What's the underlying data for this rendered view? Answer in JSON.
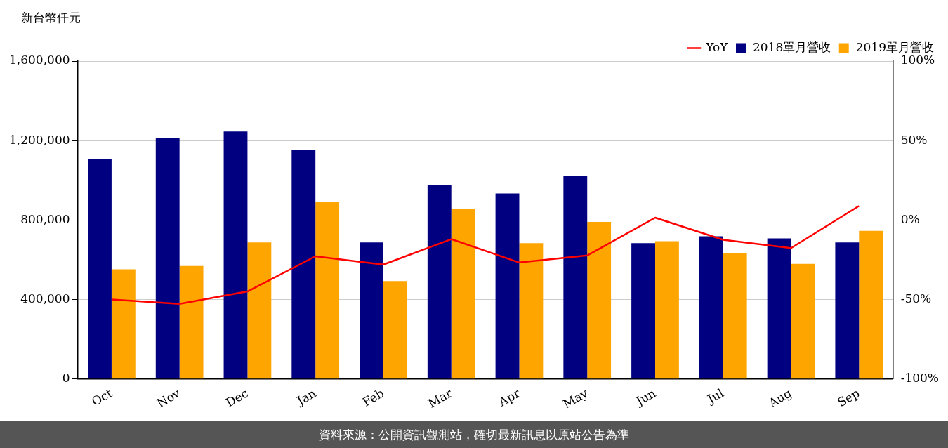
{
  "chart_data": {
    "type": "bar",
    "ylabel": "新台幣仟元",
    "categories": [
      "Oct",
      "Nov",
      "Dec",
      "Jan",
      "Feb",
      "Mar",
      "Apr",
      "May",
      "Jun",
      "Jul",
      "Aug",
      "Sep"
    ],
    "series": [
      {
        "name": "2018單月營收",
        "color": "#000080",
        "values": [
          1107000,
          1211000,
          1246000,
          1152000,
          687000,
          975000,
          934000,
          1024000,
          684000,
          718000,
          708000,
          687000
        ]
      },
      {
        "name": "2019單月營收",
        "color": "#ffa500",
        "values": [
          552000,
          569000,
          687000,
          892000,
          493000,
          854000,
          684000,
          791000,
          694000,
          635000,
          580000,
          746000
        ]
      },
      {
        "name": "YoY",
        "type": "line",
        "axis": "y2",
        "color": "#ff0000",
        "values": [
          -50,
          -52.7,
          -44.9,
          -22.8,
          -28,
          -12,
          -26.7,
          -22.3,
          1.5,
          -12.4,
          -17.6,
          8.9
        ]
      }
    ],
    "ylim": [
      0,
      1600000
    ],
    "yticks": [
      {
        "value": 0,
        "label": "0"
      },
      {
        "value": 400000,
        "label": "400,000"
      },
      {
        "value": 800000,
        "label": "800,000"
      },
      {
        "value": 1200000,
        "label": "1,200,000"
      },
      {
        "value": 1600000,
        "label": "1,600,000"
      }
    ],
    "y2lim": [
      -100,
      100
    ],
    "y2ticks": [
      {
        "value": -100,
        "label": "-100%"
      },
      {
        "value": -50,
        "label": "-50%"
      },
      {
        "value": 0,
        "label": "0%"
      },
      {
        "value": 50,
        "label": "50%"
      },
      {
        "value": 100,
        "label": "100%"
      }
    ],
    "grid": "y",
    "legend": "top right",
    "marker": "none",
    "annotations": [
      "資料來源：公開資訊觀測站，確切最新訊息以原站公告為準"
    ]
  }
}
